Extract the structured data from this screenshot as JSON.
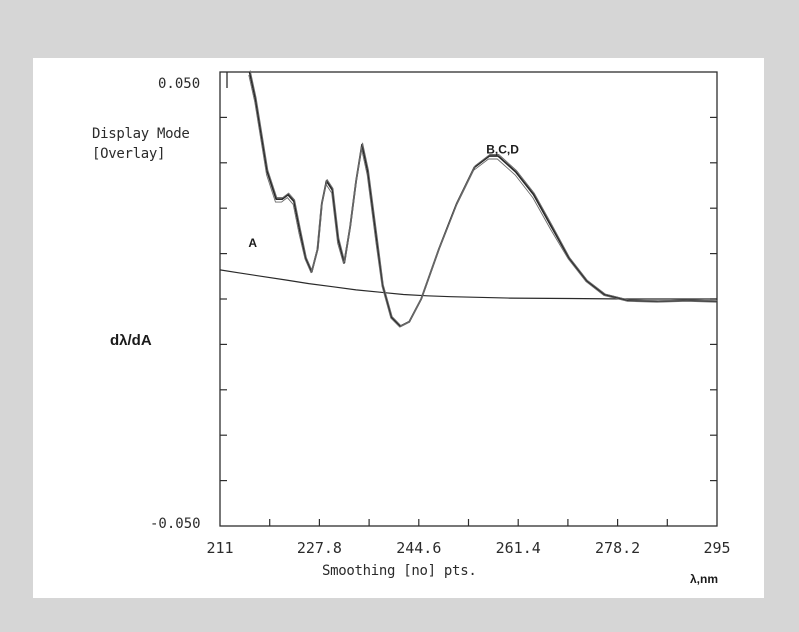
{
  "figure": {
    "display_mode_label": "Display Mode",
    "display_mode_value": "[Overlay]",
    "smoothing_label": "Smoothing [no] pts.",
    "y_top_label": "0.050",
    "y_bottom_label": "-0.050",
    "y_axis_title": "dλ/dA",
    "x_unit": "λ,nm",
    "background": "#d6d6d6",
    "panel_color": "#ffffff",
    "trace_color": "#2a2a2a"
  },
  "chart_data": {
    "type": "line",
    "title": "",
    "xlabel": "λ,nm",
    "ylabel": "dλ/dA",
    "xlim": [
      211,
      295
    ],
    "ylim": [
      -0.05,
      0.05
    ],
    "x_ticks": [
      211,
      227.8,
      244.6,
      261.4,
      278.2,
      295
    ],
    "x_tick_labels": [
      "211",
      "227.8",
      "244.6",
      "261.4",
      "278.2",
      "295"
    ],
    "y_tick_labels": [
      "0.050",
      "-0.050"
    ],
    "grid": false,
    "annotations": [
      {
        "text": "A",
        "x": 215.8,
        "y": 0.0115
      },
      {
        "text": "B,C,D",
        "x": 256,
        "y": 0.032
      }
    ],
    "series": [
      {
        "name": "A",
        "x": [
          211,
          214,
          218,
          222,
          226,
          230,
          234,
          238,
          242,
          246,
          250,
          260,
          270,
          280,
          290,
          295
        ],
        "y": [
          0.0064,
          0.0058,
          0.005,
          0.0042,
          0.0034,
          0.0027,
          0.002,
          0.0015,
          0.001,
          0.0007,
          0.0005,
          0.0002,
          0.0001,
          0.0,
          0.0,
          0.0
        ]
      },
      {
        "name": "B,C,D",
        "x": [
          216,
          217,
          219,
          220.5,
          221.5,
          222.5,
          223.5,
          224.5,
          225.5,
          226.5,
          227.5,
          228.2,
          229,
          230,
          231,
          232,
          233,
          234,
          235,
          236,
          237.5,
          238.5,
          240,
          241.5,
          243,
          245,
          248,
          251,
          254,
          256.5,
          258,
          261,
          264,
          267,
          270,
          273,
          276,
          280,
          285,
          290,
          295
        ],
        "y": [
          0.05,
          0.044,
          0.028,
          0.022,
          0.022,
          0.023,
          0.0215,
          0.015,
          0.009,
          0.006,
          0.011,
          0.021,
          0.026,
          0.024,
          0.013,
          0.008,
          0.016,
          0.026,
          0.034,
          0.028,
          0.013,
          0.003,
          -0.004,
          -0.006,
          -0.005,
          0.0,
          0.011,
          0.021,
          0.029,
          0.0315,
          0.0315,
          0.028,
          0.023,
          0.016,
          0.009,
          0.004,
          0.001,
          -0.0003,
          -0.0005,
          -0.0003,
          -0.0005
        ]
      }
    ]
  }
}
